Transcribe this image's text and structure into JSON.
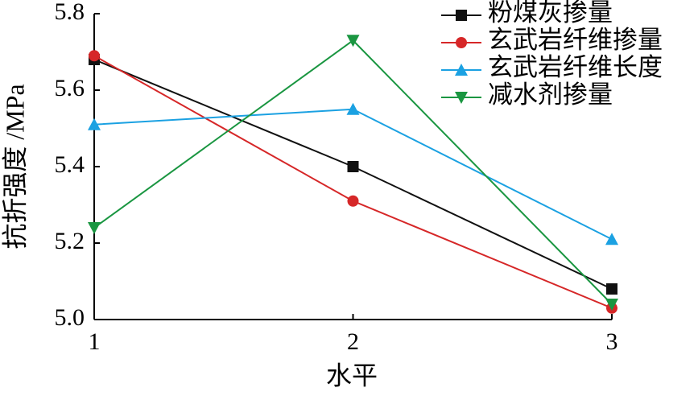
{
  "chart_data": {
    "type": "line",
    "x_label": "水平",
    "y_label": "抗折强度 /MPa",
    "x": [
      1,
      2,
      3
    ],
    "xlim": [
      1,
      3
    ],
    "xticks": [
      1,
      2,
      3
    ],
    "ylim": [
      5.0,
      5.8
    ],
    "yticks": [
      {
        "value": 5.0,
        "label": "5.0"
      },
      {
        "value": 5.2,
        "label": "5.2"
      },
      {
        "value": 5.4,
        "label": "5.4"
      },
      {
        "value": 5.6,
        "label": "5.6"
      },
      {
        "value": 5.8,
        "label": "5.8"
      }
    ],
    "grid": false,
    "legend": "upper right",
    "series": [
      {
        "name": "粉煤灰掺量",
        "color": "#111111",
        "marker": "square",
        "values": [
          5.68,
          5.4,
          5.08
        ]
      },
      {
        "name": "玄武岩纤维掺量",
        "color": "#d62728",
        "marker": "circle",
        "values": [
          5.69,
          5.31,
          5.03
        ]
      },
      {
        "name": "玄武岩纤维长度",
        "color": "#1ba1e2",
        "marker": "triangle-up",
        "values": [
          5.51,
          5.55,
          5.21
        ]
      },
      {
        "name": "减水剂掺量",
        "color": "#1a9641",
        "marker": "triangle-down",
        "values": [
          5.24,
          5.73,
          5.04
        ]
      }
    ]
  }
}
